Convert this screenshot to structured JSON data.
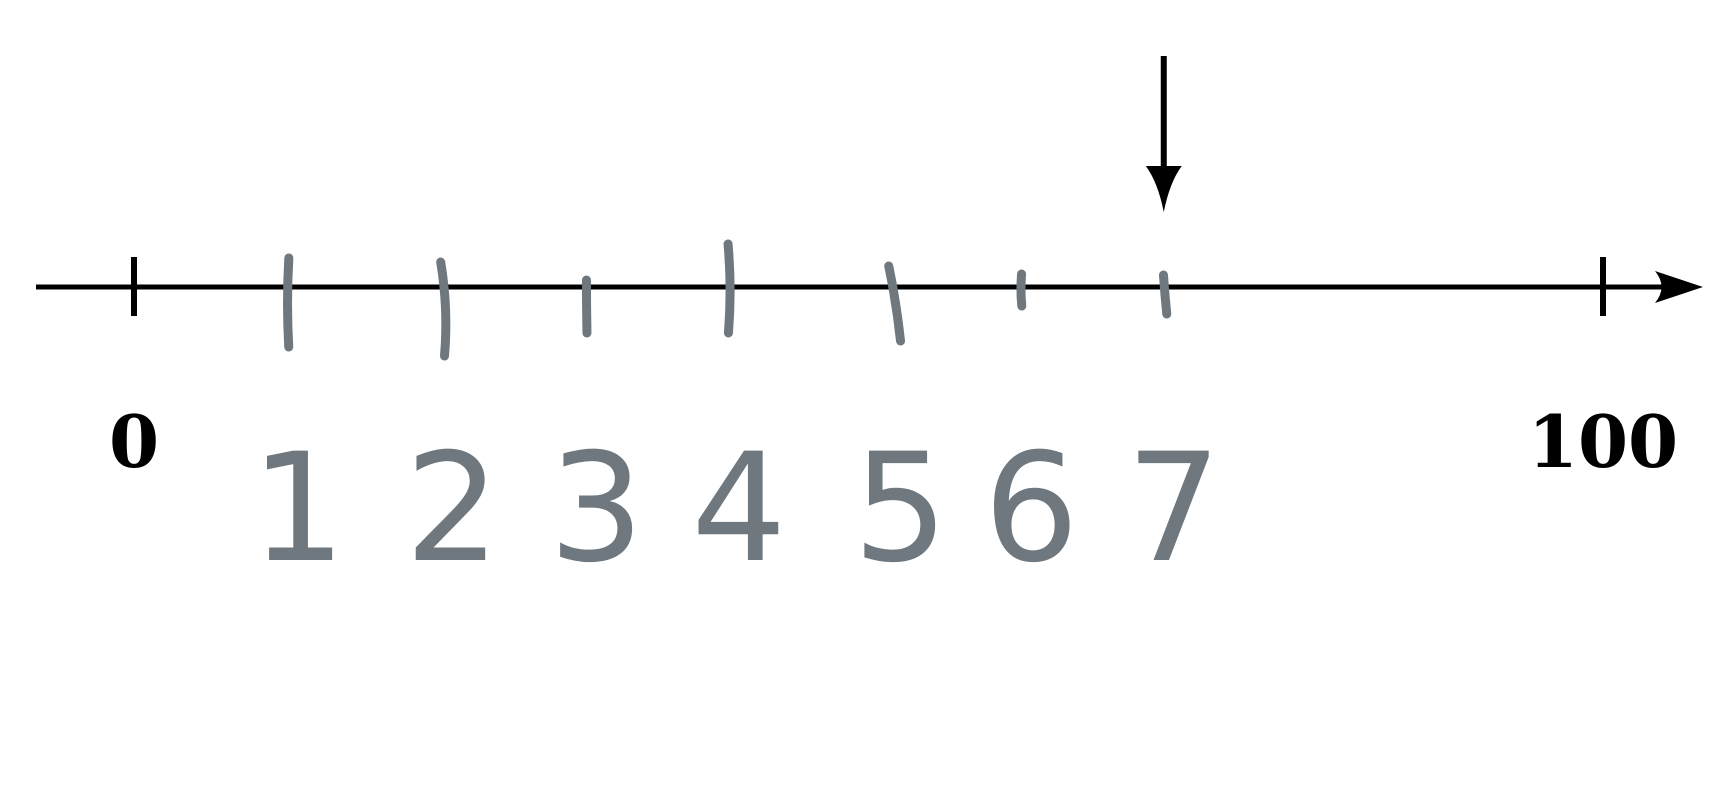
{
  "number_line": {
    "start_label": "0",
    "end_label": "100",
    "start_value": 0,
    "end_value": 100,
    "line_color": "#000000",
    "handwriting_color": "#6f787e",
    "handwritten_marks": [
      {
        "label": "1",
        "value": 10.5
      },
      {
        "label": "2",
        "value": 21.0
      },
      {
        "label": "3",
        "value": 30.8
      },
      {
        "label": "4",
        "value": 40.5
      },
      {
        "label": "5",
        "value": 51.5
      },
      {
        "label": "6",
        "value": 60.4
      },
      {
        "label": "7",
        "value": 70.1
      }
    ],
    "arrow_marker": {
      "value": 70.1,
      "icon": "down-arrow-icon"
    }
  }
}
